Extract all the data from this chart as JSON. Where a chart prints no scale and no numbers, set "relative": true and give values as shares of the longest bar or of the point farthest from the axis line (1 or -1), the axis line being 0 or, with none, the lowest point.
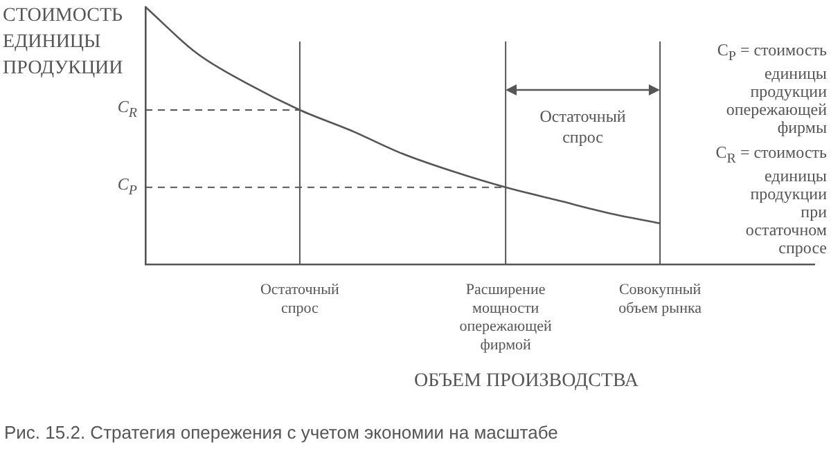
{
  "chart_data": {
    "type": "line",
    "relative": true,
    "ylabel": "СТОИМОСТЬ\nЕДИНИЦЫ\nПРОДУКЦИИ",
    "xlabel": "ОБЪЕМ ПРОИЗВОДСТВА",
    "categories": [
      null,
      null,
      null,
      "Остаточный\nспрос",
      null,
      null,
      null,
      "Расширение\nмощности\nопережающей\nфирмой",
      null,
      null,
      "Совокупный\nобъем рынка",
      null,
      null,
      null
    ],
    "series": [
      {
        "color": "#555555",
        "values": [
          1.0,
          0.82,
          0.7,
          0.6,
          0.52,
          0.43,
          0.36,
          0.3,
          0.25,
          0.2,
          0.16,
          null,
          null,
          null
        ]
      }
    ],
    "marker": "none",
    "line_style": "solid",
    "grid": false,
    "legend": false,
    "ref_lines": [
      {
        "axis": "y",
        "value": 0.6,
        "label": "C$_{R}$",
        "line_style": "dashed",
        "color": "#555555"
      },
      {
        "axis": "y",
        "value": 0.3,
        "label": "C$_{P}$",
        "line_style": "dashed",
        "color": "#555555"
      },
      {
        "axis": "x",
        "value": "Остаточный\nспрос",
        "color": "#555555"
      },
      {
        "axis": "x",
        "value": "Расширение\nмощности\nопережающей\nфирмой",
        "color": "#555555"
      },
      {
        "axis": "x",
        "value": "Совокупный\nобъем рынка",
        "color": "#555555"
      }
    ],
    "annotations": [
      "Остаточный\nспрос",
      "C$_{P}$ = стоимость\nединицы\nпродукции\nопережающей\nфирмы",
      "C$_{R}$ = стоимость\nединицы\nпродукции\nпри\nостаточном\nспросе",
      "Рис. 15.2. Стратегия опережения с учетом экономии на масштабе"
    ]
  }
}
